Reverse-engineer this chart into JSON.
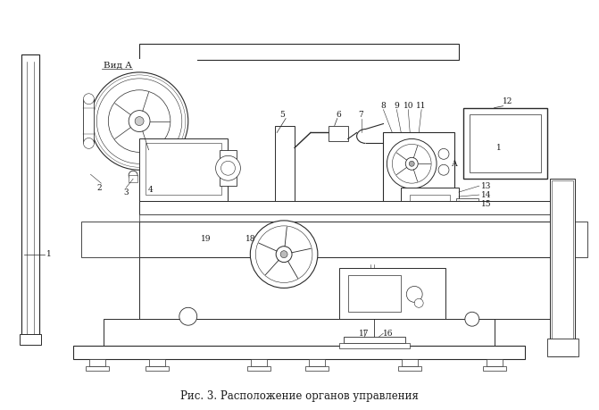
{
  "title": "Рис. 3. Расположение органов управления",
  "line_color": "#2a2a2a",
  "text_color": "#1a1a1a",
  "fig_width": 6.71,
  "fig_height": 4.59,
  "dpi": 100,
  "caption_fontsize": 8.5,
  "label_fontsize": 6.5,
  "vid_a_text": "Вид А"
}
